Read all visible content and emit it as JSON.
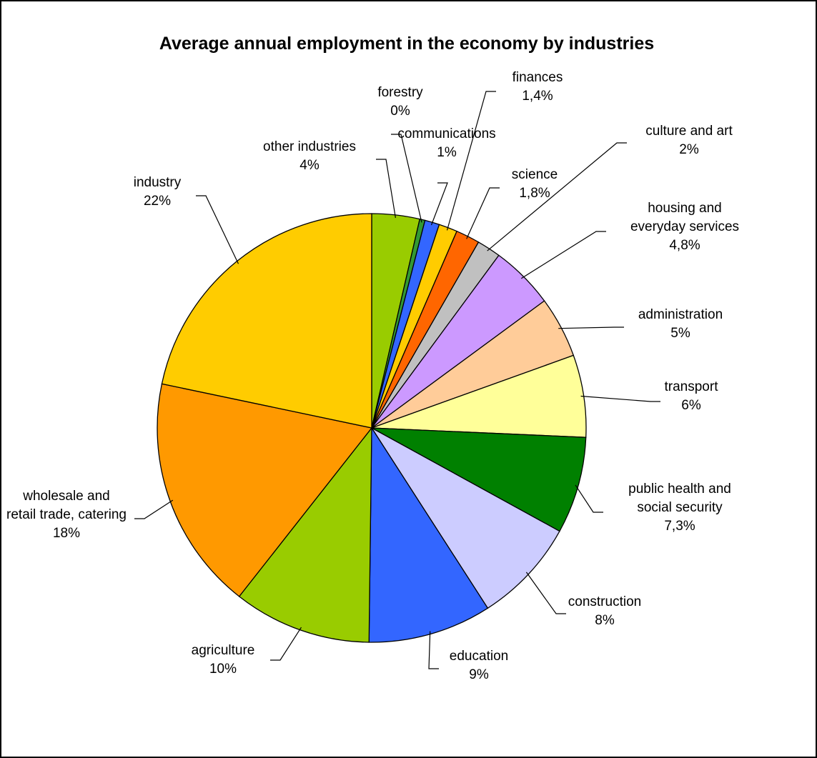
{
  "chart_data": {
    "type": "pie",
    "title": "Average annual employment in the economy by industries",
    "legend": "none",
    "slices": [
      {
        "name": "other industries",
        "value": 3.6,
        "label": "4%",
        "color": "#99CC00"
      },
      {
        "name": "forestry",
        "value": 0.4,
        "label": "0%",
        "color": "#339933"
      },
      {
        "name": "communications",
        "value": 1.1,
        "label": "1%",
        "color": "#3366FF"
      },
      {
        "name": "finances",
        "value": 1.4,
        "label": "1,4%",
        "color": "#FFCC00"
      },
      {
        "name": "science",
        "value": 1.8,
        "label": "1,8%",
        "color": "#FF6600"
      },
      {
        "name": "culture and art",
        "value": 1.8,
        "label": "2%",
        "color": "#C0C0C0"
      },
      {
        "name": "housing and everyday services",
        "value": 4.8,
        "label": "4,8%",
        "color": "#CC99FF"
      },
      {
        "name": "administration",
        "value": 4.6,
        "label": "5%",
        "color": "#FFCC99"
      },
      {
        "name": "transport",
        "value": 6.2,
        "label": "6%",
        "color": "#FFFF99"
      },
      {
        "name": "public health and social security",
        "value": 7.3,
        "label": "7,3%",
        "color": "#008000"
      },
      {
        "name": "construction",
        "value": 7.9,
        "label": "8%",
        "color": "#CCCCFF"
      },
      {
        "name": "education",
        "value": 9.3,
        "label": "9%",
        "color": "#3366FF"
      },
      {
        "name": "agriculture",
        "value": 10.4,
        "label": "10%",
        "color": "#99CC00"
      },
      {
        "name": "wholesale and retail trade, catering",
        "value": 17.7,
        "label": "18%",
        "color": "#FF9900"
      },
      {
        "name": "industry",
        "value": 21.7,
        "label": "22%",
        "color": "#FFCC00"
      }
    ]
  }
}
